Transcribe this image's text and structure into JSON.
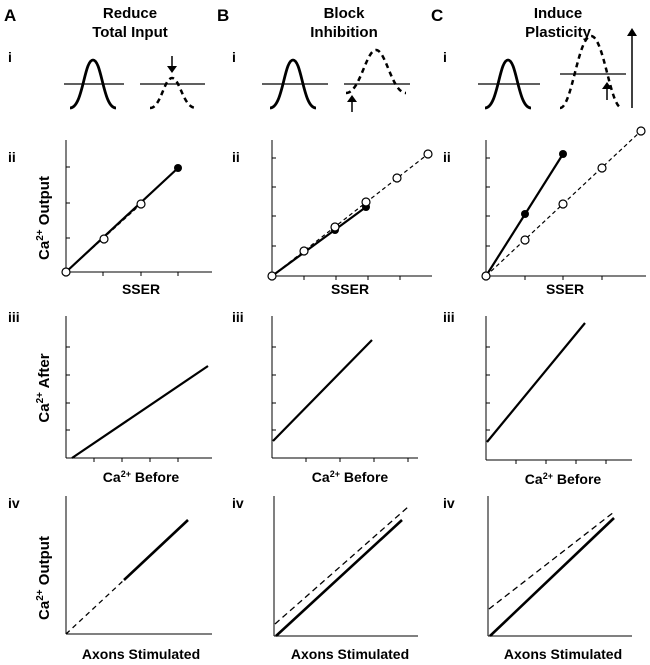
{
  "columns": [
    {
      "letter": "A",
      "title_line1": "Reduce",
      "title_line2": "Total Input"
    },
    {
      "letter": "B",
      "title_line1": "Block",
      "title_line2": "Inhibition"
    },
    {
      "letter": "C",
      "title_line1": "Induce",
      "title_line2": "Plasticity"
    }
  ],
  "rows": {
    "i": "i",
    "ii": "ii",
    "iii": "iii",
    "iv": "iv"
  },
  "labels": {
    "ylabel_ii_base": "Ca",
    "ylabel_ii_sup": "2+",
    "ylabel_ii_rest": " Output",
    "ylabel_iii_base": "Ca",
    "ylabel_iii_sup": "2+",
    "ylabel_iii_rest": " After",
    "ylabel_iv_base": "Ca",
    "ylabel_iv_sup": "2+",
    "ylabel_iv_rest": " Output",
    "xlabel_ii": "SSER",
    "xlabel_iii_base": "Ca",
    "xlabel_iii_sup": "2+",
    "xlabel_iii_rest": " Before",
    "xlabel_iv": "Axons Stimulated"
  },
  "colors": {
    "ink": "#000000",
    "background": "#ffffff"
  }
}
